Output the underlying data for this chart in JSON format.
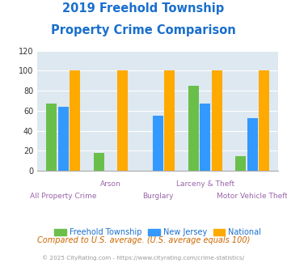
{
  "title_line1": "2019 Freehold Township",
  "title_line2": "Property Crime Comparison",
  "title_color": "#1a6fcc",
  "categories": [
    "All Property Crime",
    "Arson",
    "Burglary",
    "Larceny & Theft",
    "Motor Vehicle Theft"
  ],
  "freehold": [
    67,
    18,
    0,
    85,
    15
  ],
  "new_jersey": [
    64,
    0,
    55,
    67,
    53
  ],
  "national": [
    100,
    100,
    100,
    100,
    100
  ],
  "color_freehold": "#6abf4b",
  "color_nj": "#3399ff",
  "color_national": "#ffaa00",
  "ylim": [
    0,
    120
  ],
  "yticks": [
    0,
    20,
    40,
    60,
    80,
    100,
    120
  ],
  "background_color": "#dde8f0",
  "legend_labels": [
    "Freehold Township",
    "New Jersey",
    "National"
  ],
  "footnote1": "Compared to U.S. average. (U.S. average equals 100)",
  "footnote2": "© 2025 CityRating.com - https://www.cityrating.com/crime-statistics/",
  "footnote1_color": "#cc6600",
  "footnote2_color": "#999999",
  "label_color": "#9966aa",
  "bar_width": 0.22,
  "xtick_labels_top": [
    "",
    "Arson",
    "",
    "Larceny & Theft",
    ""
  ],
  "xtick_labels_bot": [
    "All Property Crime",
    "",
    "Burglary",
    "",
    "Motor Vehicle Theft"
  ]
}
